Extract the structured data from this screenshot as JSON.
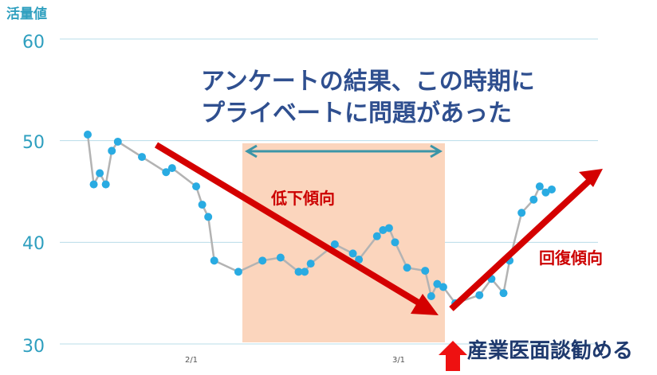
{
  "chart_data": {
    "type": "line",
    "ylabel": "活量値",
    "ylim": [
      30,
      60
    ],
    "yticks": [
      "60",
      "50",
      "40",
      "30"
    ],
    "xticks": [
      "2/1",
      "3/1"
    ],
    "x_range": [
      0,
      86
    ],
    "xtick_positions": [
      25,
      55
    ],
    "series": [
      {
        "x": [
          0,
          1,
          2,
          3,
          4,
          5,
          9,
          13,
          14,
          18,
          19,
          20,
          21,
          25,
          29,
          32,
          35,
          36,
          37,
          41,
          44,
          45,
          48,
          49,
          50,
          51,
          53,
          56,
          57,
          58,
          59,
          61,
          65,
          67,
          69,
          70,
          72,
          74,
          75,
          76,
          77
        ],
        "values": [
          50.6,
          45.7,
          46.8,
          45.7,
          49.0,
          49.9,
          48.4,
          46.9,
          47.3,
          45.5,
          43.7,
          42.5,
          38.2,
          37.1,
          38.2,
          38.5,
          37.1,
          37.1,
          37.9,
          39.8,
          38.9,
          38.3,
          40.6,
          41.2,
          41.4,
          40.0,
          37.5,
          37.2,
          34.7,
          35.9,
          35.6,
          34.0,
          34.8,
          36.4,
          35.0,
          38.2,
          42.9,
          44.2,
          45.5,
          44.9,
          45.2
        ]
      }
    ],
    "colors": {
      "line": "#b3b3b3",
      "point": "#29abe2",
      "grid": "#b8dce8",
      "highlight": "#fbd5bd",
      "arrow_red": "#d40000",
      "arrow_teal": "#3b95a8"
    }
  },
  "annotations": {
    "main_line1": "アンケートの結果、この時期に",
    "main_line2": "プライベートに問題があった",
    "decline": "低下傾向",
    "recovery": "回復傾向",
    "interview": "産業医面談勧める"
  }
}
